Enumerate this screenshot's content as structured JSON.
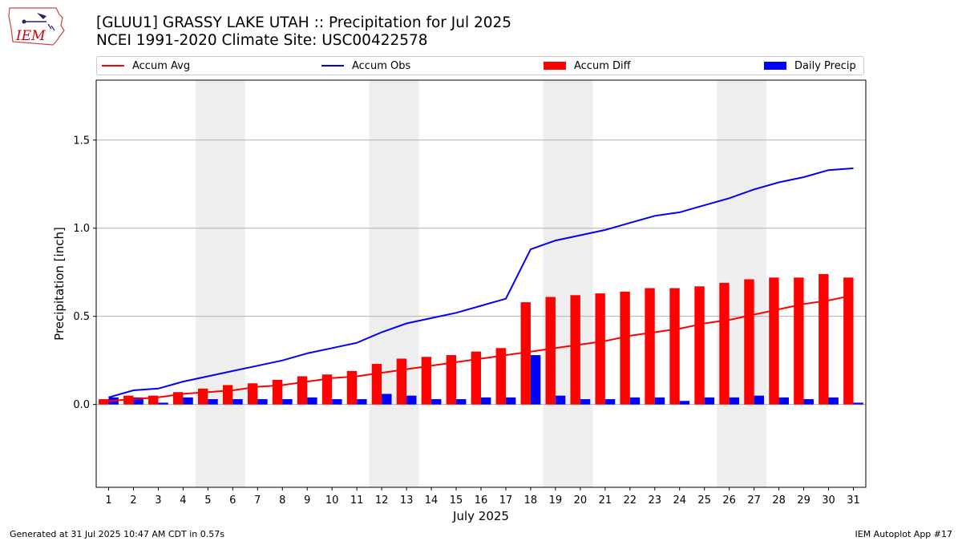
{
  "page": {
    "title_line1": "[GLUU1] GRASSY LAKE  UTAH :: Precipitation for Jul 2025",
    "title_line2": "NCEI 1991-2020 Climate Site: USC00422578",
    "footer_left": "Generated at 31 Jul 2025 10:47 AM CDT in 0.57s",
    "footer_right": "IEM Autoplot App #17",
    "logo_text": "IEM"
  },
  "colors": {
    "accum_avg": "#ff0000",
    "accum_obs": "#0000ff",
    "accum_diff": "#ff0000",
    "daily_precip": "#0000ff",
    "weekend_shade": "#eeeeee",
    "grid": "#b0b0b0"
  },
  "chart_data": {
    "type": "bar",
    "xlabel": "July 2025",
    "ylabel": "Precipitation [inch]",
    "ylim": [
      -0.47,
      1.84
    ],
    "yticks": [
      0.0,
      0.5,
      1.0,
      1.5
    ],
    "ytick_labels": [
      "0.0",
      "0.5",
      "1.0",
      "1.5"
    ],
    "grid": "horizontal",
    "legend_placement": "top",
    "x": [
      1,
      2,
      3,
      4,
      5,
      6,
      7,
      8,
      9,
      10,
      11,
      12,
      13,
      14,
      15,
      16,
      17,
      18,
      19,
      20,
      21,
      22,
      23,
      24,
      25,
      26,
      27,
      28,
      29,
      30,
      31
    ],
    "shaded_days": [
      5,
      6,
      12,
      13,
      19,
      20,
      26,
      27
    ],
    "series": [
      {
        "name": "Accum Avg",
        "kind": "line",
        "values": [
          0.02,
          0.03,
          0.04,
          0.06,
          0.07,
          0.08,
          0.1,
          0.11,
          0.13,
          0.15,
          0.16,
          0.18,
          0.2,
          0.22,
          0.24,
          0.26,
          0.28,
          0.3,
          0.32,
          0.34,
          0.36,
          0.39,
          0.41,
          0.43,
          0.46,
          0.48,
          0.51,
          0.54,
          0.57,
          0.59,
          0.62
        ]
      },
      {
        "name": "Accum Obs",
        "kind": "line",
        "values": [
          0.04,
          0.08,
          0.09,
          0.13,
          0.16,
          0.19,
          0.22,
          0.25,
          0.29,
          0.32,
          0.35,
          0.41,
          0.46,
          0.49,
          0.52,
          0.56,
          0.6,
          0.88,
          0.93,
          0.96,
          0.99,
          1.03,
          1.07,
          1.09,
          1.13,
          1.17,
          1.22,
          1.26,
          1.29,
          1.33,
          1.34
        ]
      },
      {
        "name": "Accum Diff",
        "kind": "bar",
        "values": [
          0.03,
          0.05,
          0.05,
          0.07,
          0.09,
          0.11,
          0.12,
          0.14,
          0.16,
          0.17,
          0.19,
          0.23,
          0.26,
          0.27,
          0.28,
          0.3,
          0.32,
          0.58,
          0.61,
          0.62,
          0.63,
          0.64,
          0.66,
          0.66,
          0.67,
          0.69,
          0.71,
          0.72,
          0.72,
          0.74,
          0.72
        ]
      },
      {
        "name": "Daily Precip",
        "kind": "bar",
        "values": [
          0.04,
          0.04,
          0.01,
          0.04,
          0.03,
          0.03,
          0.03,
          0.03,
          0.04,
          0.03,
          0.03,
          0.06,
          0.05,
          0.03,
          0.03,
          0.04,
          0.04,
          0.28,
          0.05,
          0.03,
          0.03,
          0.04,
          0.04,
          0.02,
          0.04,
          0.04,
          0.05,
          0.04,
          0.03,
          0.04,
          0.01
        ]
      }
    ]
  }
}
